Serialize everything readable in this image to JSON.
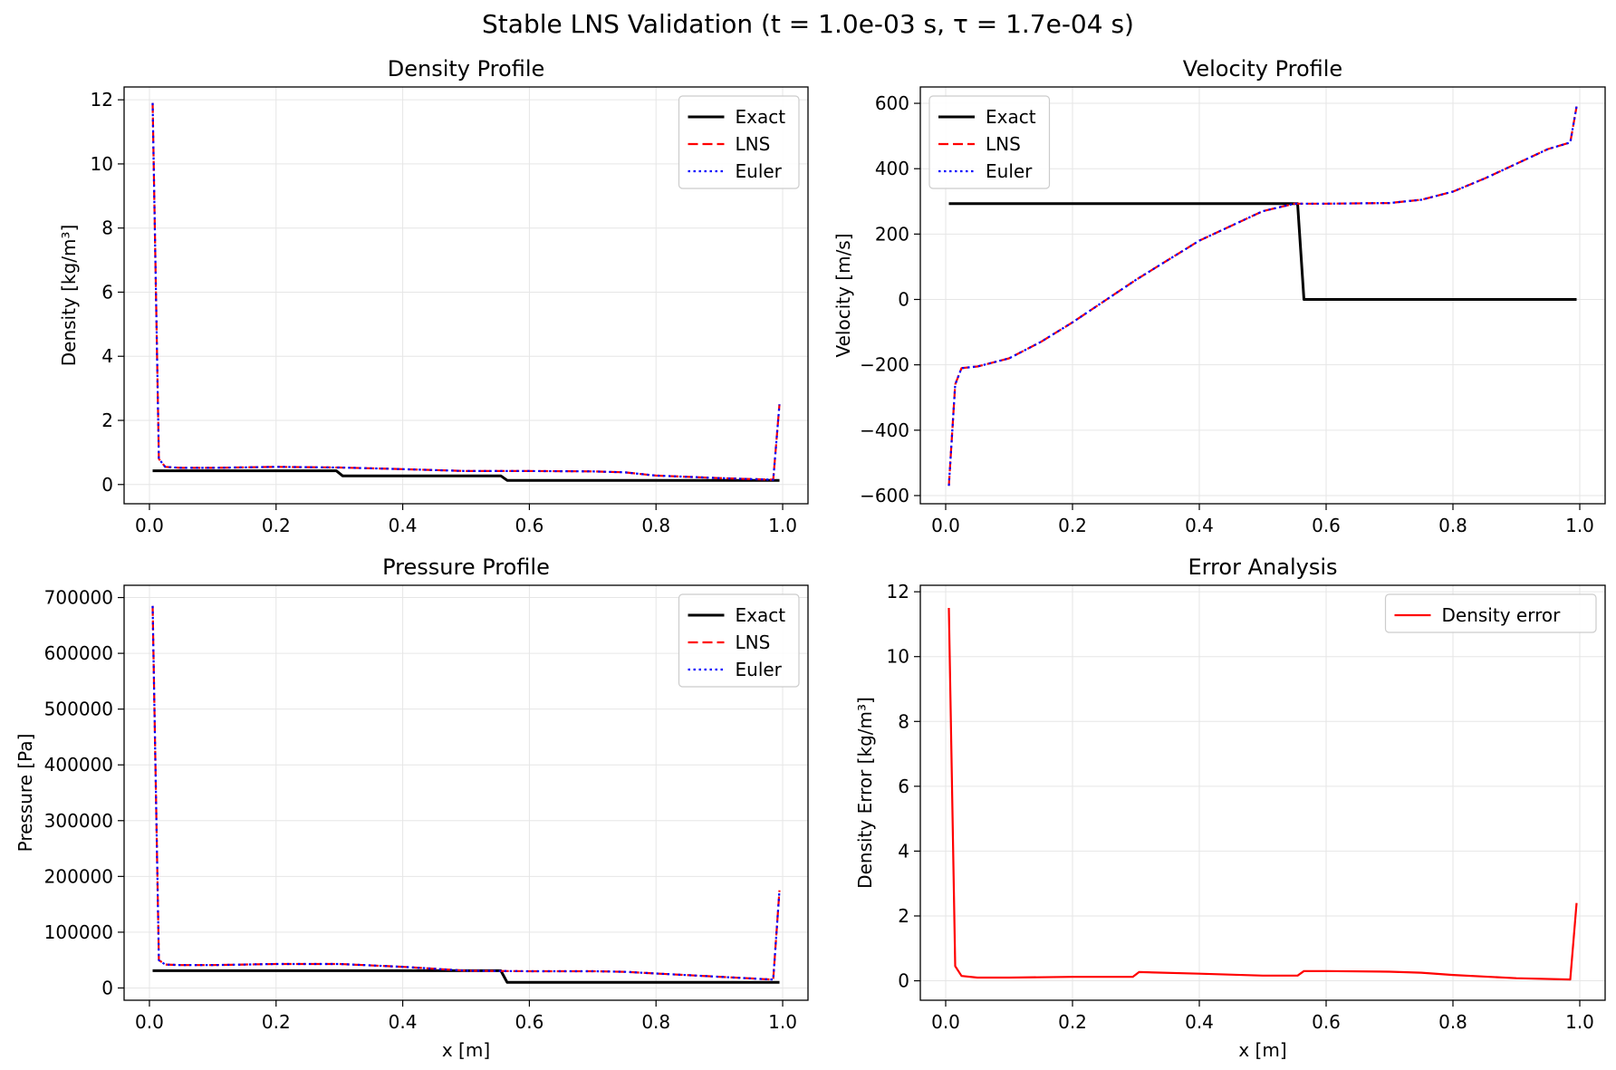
{
  "figure_title": "Stable LNS Validation (t = 1.0e-03 s, τ = 1.7e-04 s)",
  "colors": {
    "exact": "#000000",
    "lns": "#ff0000",
    "euler": "#0000ff",
    "error": "#ff0000",
    "grid": "#e6e6e6"
  },
  "chart_data": [
    {
      "type": "line",
      "title": "Density Profile",
      "xlabel": "",
      "ylabel": "Density [kg/m³]",
      "xlim": [
        -0.04,
        1.04
      ],
      "ylim": [
        -0.6,
        12.4
      ],
      "xticks": [
        0,
        0.2,
        0.4,
        0.6,
        0.8,
        1.0
      ],
      "xtick_labels": [
        "0.0",
        "0.2",
        "0.4",
        "0.6",
        "0.8",
        "1.0"
      ],
      "yticks": [
        0,
        2,
        4,
        6,
        8,
        10,
        12
      ],
      "ytick_labels": [
        "0",
        "2",
        "4",
        "6",
        "8",
        "10",
        "12"
      ],
      "grid": true,
      "legend": "top-right",
      "series": [
        {
          "name": "Exact",
          "style": "solid",
          "x": [
            0.005,
            0.295,
            0.305,
            0.555,
            0.565,
            0.995
          ],
          "y": [
            0.43,
            0.43,
            0.27,
            0.27,
            0.13,
            0.13
          ]
        },
        {
          "name": "LNS",
          "style": "dashed",
          "x": [
            0.005,
            0.015,
            0.025,
            0.05,
            0.1,
            0.2,
            0.3,
            0.4,
            0.5,
            0.6,
            0.7,
            0.75,
            0.8,
            0.9,
            0.985,
            0.995
          ],
          "y": [
            11.9,
            0.8,
            0.55,
            0.52,
            0.52,
            0.55,
            0.53,
            0.48,
            0.42,
            0.42,
            0.41,
            0.38,
            0.28,
            0.2,
            0.15,
            2.5
          ]
        },
        {
          "name": "Euler",
          "style": "dotted",
          "x": [
            0.005,
            0.015,
            0.025,
            0.05,
            0.1,
            0.2,
            0.3,
            0.4,
            0.5,
            0.6,
            0.7,
            0.75,
            0.8,
            0.9,
            0.985,
            0.995
          ],
          "y": [
            11.9,
            0.8,
            0.55,
            0.52,
            0.52,
            0.55,
            0.53,
            0.48,
            0.42,
            0.42,
            0.41,
            0.38,
            0.28,
            0.2,
            0.15,
            2.5
          ]
        }
      ]
    },
    {
      "type": "line",
      "title": "Velocity Profile",
      "xlabel": "",
      "ylabel": "Velocity [m/s]",
      "xlim": [
        -0.04,
        1.04
      ],
      "ylim": [
        -625,
        650
      ],
      "xticks": [
        0,
        0.2,
        0.4,
        0.6,
        0.8,
        1.0
      ],
      "xtick_labels": [
        "0.0",
        "0.2",
        "0.4",
        "0.6",
        "0.8",
        "1.0"
      ],
      "yticks": [
        -600,
        -400,
        -200,
        0,
        200,
        400,
        600
      ],
      "ytick_labels": [
        "−600",
        "−400",
        "−200",
        "0",
        "200",
        "400",
        "600"
      ],
      "grid": true,
      "legend": "top-left",
      "series": [
        {
          "name": "Exact",
          "style": "solid",
          "x": [
            0.005,
            0.555,
            0.565,
            0.995
          ],
          "y": [
            293,
            293,
            0,
            0
          ]
        },
        {
          "name": "LNS",
          "style": "dashed",
          "x": [
            0.005,
            0.015,
            0.025,
            0.05,
            0.1,
            0.15,
            0.2,
            0.3,
            0.4,
            0.5,
            0.55,
            0.6,
            0.7,
            0.75,
            0.8,
            0.85,
            0.9,
            0.95,
            0.985,
            0.995
          ],
          "y": [
            -570,
            -260,
            -210,
            -205,
            -180,
            -130,
            -70,
            60,
            180,
            270,
            293,
            293,
            295,
            305,
            330,
            370,
            415,
            460,
            480,
            590
          ]
        },
        {
          "name": "Euler",
          "style": "dotted",
          "x": [
            0.005,
            0.015,
            0.025,
            0.05,
            0.1,
            0.15,
            0.2,
            0.3,
            0.4,
            0.5,
            0.55,
            0.6,
            0.7,
            0.75,
            0.8,
            0.85,
            0.9,
            0.95,
            0.985,
            0.995
          ],
          "y": [
            -570,
            -260,
            -210,
            -205,
            -180,
            -130,
            -70,
            60,
            180,
            270,
            293,
            293,
            295,
            305,
            330,
            370,
            415,
            460,
            480,
            590
          ]
        }
      ]
    },
    {
      "type": "line",
      "title": "Pressure Profile",
      "xlabel": "x [m]",
      "ylabel": "Pressure [Pa]",
      "xlim": [
        -0.04,
        1.04
      ],
      "ylim": [
        -22000,
        722000
      ],
      "xticks": [
        0,
        0.2,
        0.4,
        0.6,
        0.8,
        1.0
      ],
      "xtick_labels": [
        "0.0",
        "0.2",
        "0.4",
        "0.6",
        "0.8",
        "1.0"
      ],
      "yticks": [
        0,
        100000,
        200000,
        300000,
        400000,
        500000,
        600000,
        700000
      ],
      "ytick_labels": [
        "0",
        "100000",
        "200000",
        "300000",
        "400000",
        "500000",
        "600000",
        "700000"
      ],
      "grid": true,
      "legend": "top-right",
      "series": [
        {
          "name": "Exact",
          "style": "solid",
          "x": [
            0.005,
            0.555,
            0.565,
            0.995
          ],
          "y": [
            31000,
            31000,
            10000,
            10000
          ]
        },
        {
          "name": "LNS",
          "style": "dashed",
          "x": [
            0.005,
            0.015,
            0.025,
            0.05,
            0.1,
            0.2,
            0.3,
            0.4,
            0.5,
            0.6,
            0.7,
            0.75,
            0.8,
            0.9,
            0.985,
            0.995
          ],
          "y": [
            685000,
            50000,
            42000,
            41000,
            41000,
            43000,
            43000,
            38000,
            31000,
            30000,
            30000,
            29000,
            26000,
            20000,
            15000,
            175000
          ]
        },
        {
          "name": "Euler",
          "style": "dotted",
          "x": [
            0.005,
            0.015,
            0.025,
            0.05,
            0.1,
            0.2,
            0.3,
            0.4,
            0.5,
            0.6,
            0.7,
            0.75,
            0.8,
            0.9,
            0.985,
            0.995
          ],
          "y": [
            685000,
            50000,
            42000,
            41000,
            41000,
            43000,
            43000,
            38000,
            31000,
            30000,
            30000,
            29000,
            26000,
            20000,
            15000,
            175000
          ]
        }
      ]
    },
    {
      "type": "line",
      "title": "Error Analysis",
      "xlabel": "x [m]",
      "ylabel": "Density Error [kg/m³]",
      "xlim": [
        -0.04,
        1.04
      ],
      "ylim": [
        -0.6,
        12.2
      ],
      "xticks": [
        0,
        0.2,
        0.4,
        0.6,
        0.8,
        1.0
      ],
      "xtick_labels": [
        "0.0",
        "0.2",
        "0.4",
        "0.6",
        "0.8",
        "1.0"
      ],
      "yticks": [
        0,
        2,
        4,
        6,
        8,
        10,
        12
      ],
      "ytick_labels": [
        "0",
        "2",
        "4",
        "6",
        "8",
        "10",
        "12"
      ],
      "grid": true,
      "legend": "top-right",
      "series": [
        {
          "name": "Density error",
          "style": "solid",
          "x": [
            0.005,
            0.015,
            0.025,
            0.05,
            0.1,
            0.2,
            0.295,
            0.305,
            0.4,
            0.5,
            0.555,
            0.565,
            0.6,
            0.7,
            0.75,
            0.8,
            0.9,
            0.985,
            0.995
          ],
          "y": [
            11.5,
            0.45,
            0.15,
            0.1,
            0.1,
            0.12,
            0.12,
            0.27,
            0.22,
            0.16,
            0.16,
            0.3,
            0.3,
            0.28,
            0.25,
            0.18,
            0.08,
            0.04,
            2.4
          ]
        }
      ]
    }
  ]
}
